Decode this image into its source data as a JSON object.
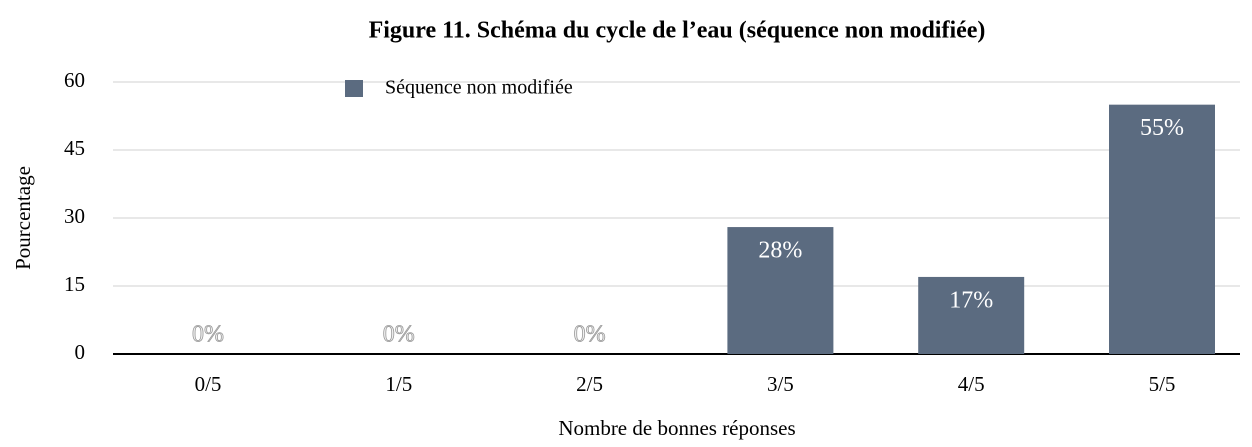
{
  "chart_data": {
    "type": "bar",
    "title": "Figure 11. Schéma du cycle de l’eau (séquence non modifiée)",
    "x_label": "Nombre de bonnes réponses",
    "y_label": "Pourcentage",
    "categories": [
      "0/5",
      "1/5",
      "2/5",
      "3/5",
      "4/5",
      "5/5"
    ],
    "series": [
      {
        "name": "Séquence non modifiée",
        "color": "#5b6b80",
        "values": [
          0,
          0,
          0,
          28,
          17,
          55
        ],
        "value_labels": [
          "0%",
          "0%",
          "0%",
          "28%",
          "17%",
          "55%"
        ]
      }
    ],
    "ylim": [
      0,
      60
    ],
    "yticks": [
      0,
      15,
      30,
      45,
      60
    ],
    "grid": true,
    "legend": "top-left"
  }
}
